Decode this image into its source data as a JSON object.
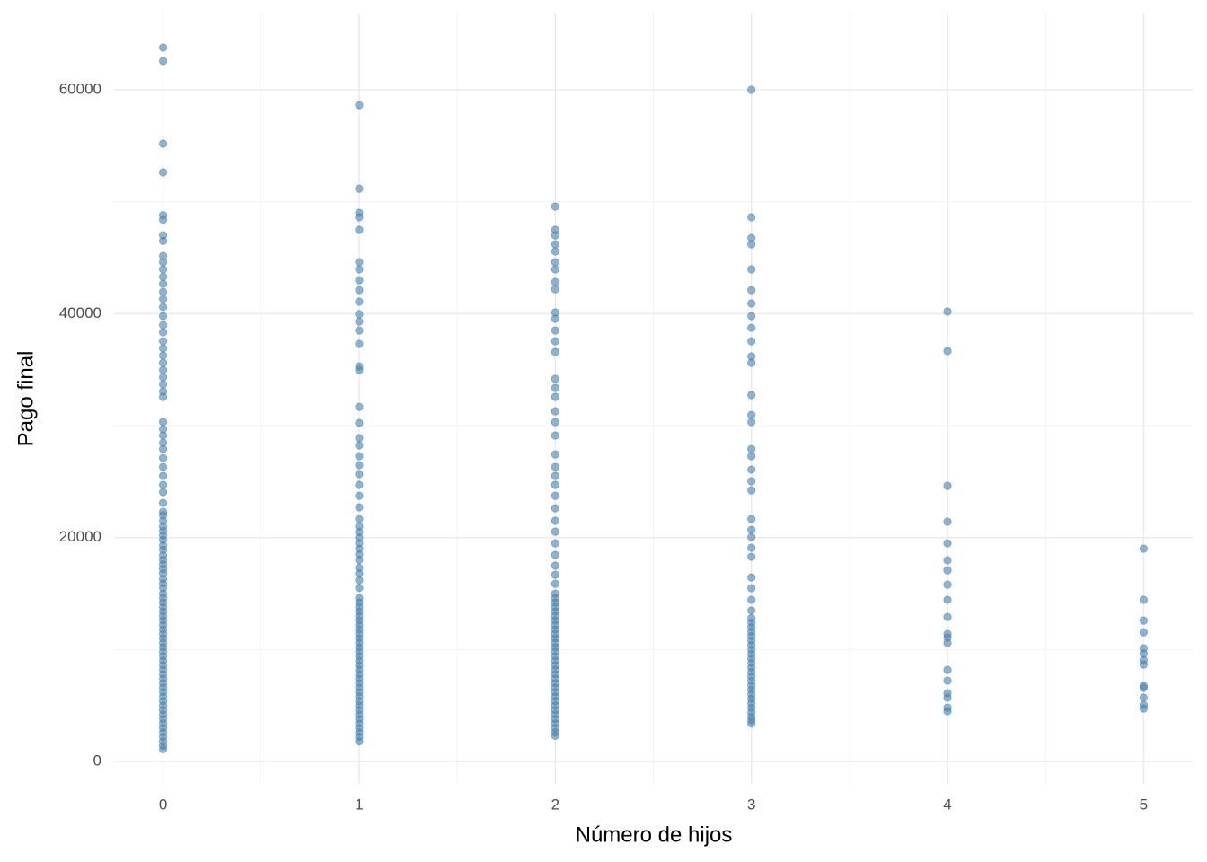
{
  "chart_data": {
    "type": "scatter",
    "x_label": "Número de hijos",
    "y_label": "Pago final",
    "color": "#4682b4",
    "opacity": 0.6,
    "grid": true,
    "xlim": [
      -0.25,
      5.25
    ],
    "xticks": [
      0,
      1,
      2,
      3,
      4,
      5
    ],
    "ylim": [
      -2000,
      66900
    ],
    "yticks": [
      0,
      20000,
      40000,
      60000
    ],
    "series": [
      {
        "x": 0,
        "values": [
          63770,
          62570,
          55190,
          52620,
          48800,
          48400,
          47000,
          46500,
          45160,
          44600,
          43960,
          43300,
          42670,
          41950,
          41310,
          40590,
          39790,
          38980,
          38340,
          37540,
          36900,
          36260,
          35610,
          34970,
          34330,
          33690,
          33050,
          32570,
          30320,
          29680,
          29120,
          28480,
          27910,
          27110,
          26310,
          25510,
          24710,
          24060,
          23100,
          22300,
          22000,
          21500,
          21000,
          20600,
          20200,
          19800,
          19300,
          18900,
          18400,
          18000,
          17600,
          17200,
          16800,
          16300,
          15900,
          15500,
          15000,
          14600,
          14200,
          13800,
          13400,
          13000,
          12600,
          12200,
          11800,
          11400,
          11000,
          10600,
          10200,
          9800,
          9400,
          9000,
          8600,
          8200,
          7800,
          7400,
          7000,
          6600,
          6200,
          5800,
          5400,
          5000,
          4600,
          4200,
          3800,
          3400,
          3000,
          2600,
          2200,
          1800,
          1400,
          1100
        ]
      },
      {
        "x": 1,
        "values": [
          58630,
          51170,
          49010,
          48610,
          47490,
          44600,
          43960,
          42990,
          42110,
          41070,
          39950,
          39300,
          38500,
          37300,
          35290,
          34970,
          31680,
          30240,
          28880,
          28240,
          27270,
          26470,
          25670,
          24710,
          23740,
          22700,
          21660,
          21000,
          20500,
          20000,
          19500,
          19000,
          18500,
          18000,
          17300,
          16800,
          16200,
          15500,
          14600,
          14200,
          13800,
          13400,
          13000,
          12600,
          12200,
          11800,
          11400,
          11000,
          10600,
          10200,
          9800,
          9400,
          9000,
          8600,
          8200,
          7800,
          7400,
          7000,
          6600,
          6200,
          5800,
          5400,
          5000,
          4600,
          4200,
          3800,
          3400,
          3000,
          2600,
          2200,
          1800
        ]
      },
      {
        "x": 2,
        "values": [
          49570,
          47490,
          47000,
          46200,
          45560,
          44600,
          43960,
          42830,
          42190,
          40110,
          39550,
          38500,
          37540,
          36580,
          34170,
          33370,
          32570,
          31280,
          30320,
          29120,
          27430,
          26310,
          25510,
          24710,
          23740,
          22620,
          21500,
          20530,
          19490,
          18450,
          17490,
          16680,
          15880,
          15000,
          14600,
          14200,
          13800,
          13400,
          13000,
          12600,
          12200,
          11800,
          11400,
          11000,
          10600,
          10200,
          9800,
          9400,
          9000,
          8600,
          8200,
          7800,
          7400,
          7000,
          6600,
          6200,
          5800,
          5400,
          5000,
          4600,
          4200,
          3800,
          3400,
          3000,
          2600,
          2300
        ]
      },
      {
        "x": 3,
        "values": [
          60000,
          48610,
          46760,
          46200,
          43960,
          42110,
          40910,
          39790,
          38740,
          37540,
          36180,
          35610,
          32730,
          30960,
          30320,
          27910,
          27270,
          26070,
          25030,
          24220,
          21660,
          20690,
          20050,
          19090,
          18290,
          16440,
          15480,
          14440,
          13480,
          12800,
          12400,
          12000,
          11600,
          11200,
          10800,
          10400,
          10000,
          9600,
          9200,
          8800,
          8400,
          8000,
          7600,
          7200,
          6800,
          6400,
          6000,
          5600,
          5200,
          4800,
          4400,
          4000,
          3700,
          3400
        ]
      },
      {
        "x": 4,
        "values": [
          40190,
          36660,
          24620,
          21420,
          19490,
          17970,
          17080,
          15800,
          14440,
          12910,
          11390,
          11070,
          10590,
          8180,
          7220,
          6100,
          5700,
          4810,
          4490
        ]
      },
      {
        "x": 5,
        "values": [
          19010,
          14440,
          12590,
          11550,
          10110,
          9630,
          9060,
          8660,
          6740,
          6580,
          5700,
          5050,
          4730
        ]
      }
    ]
  }
}
